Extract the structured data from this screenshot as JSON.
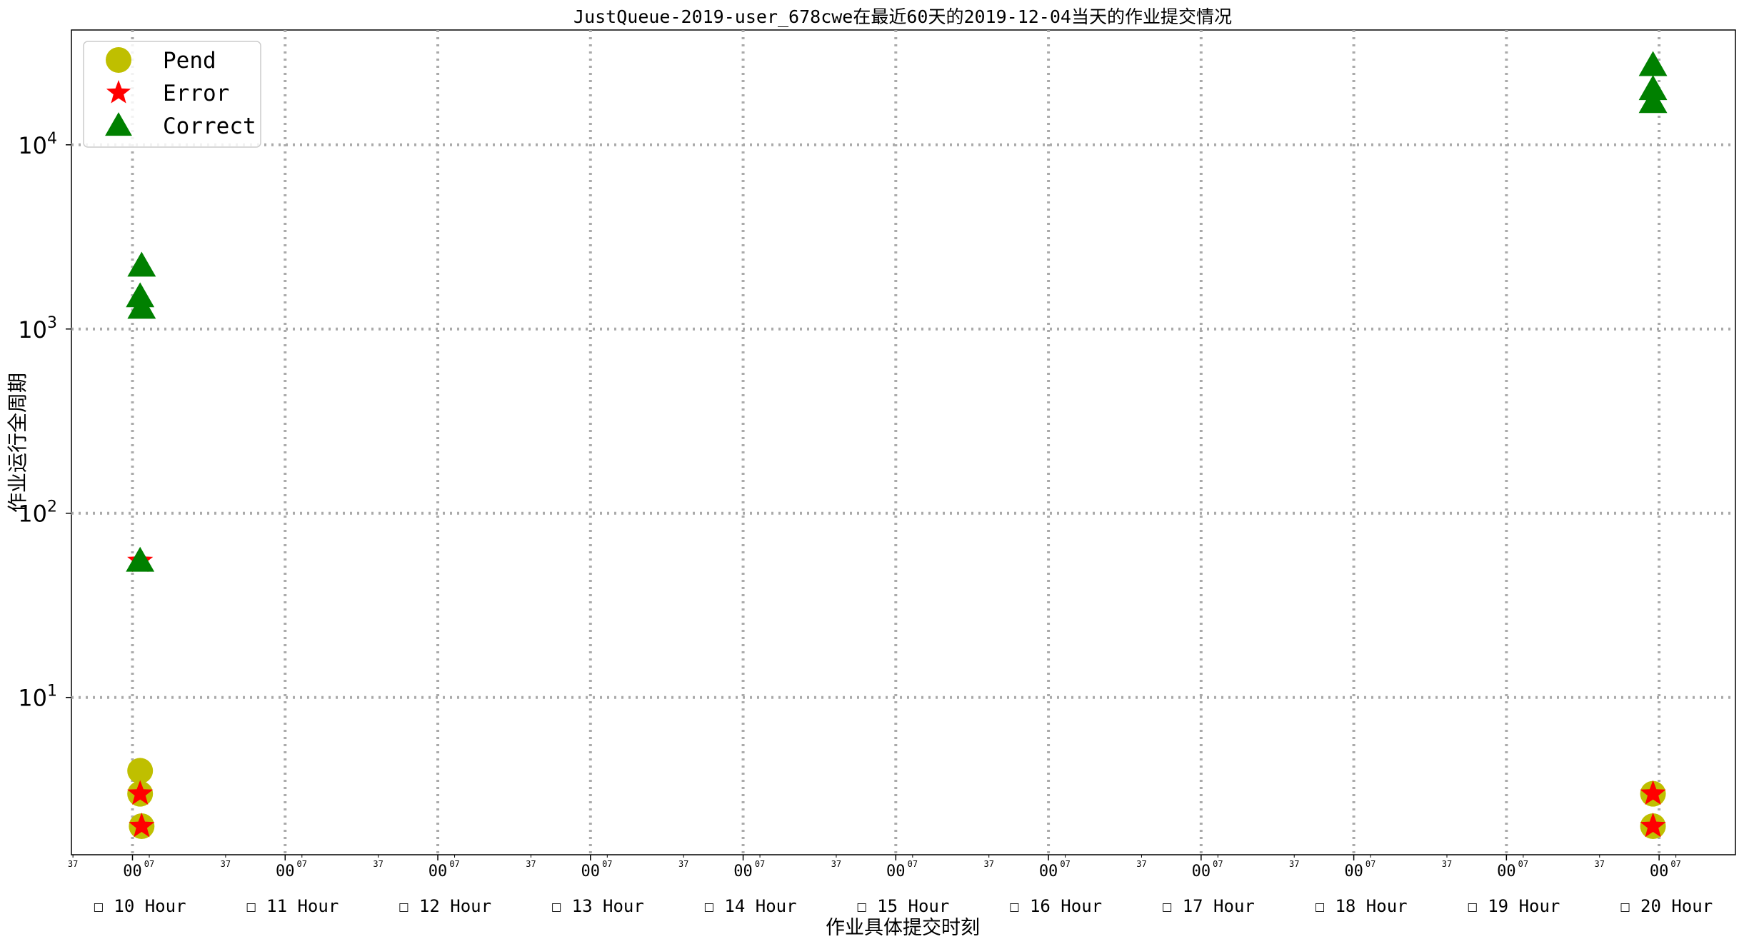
{
  "chart_data": {
    "type": "scatter",
    "title": "JustQueue-2019-user_678cwe在最近60天的2019-12-04当天的作业提交情况",
    "xlabel": "作业具体提交时刻",
    "ylabel": "作业运行全周期",
    "y_scale": "log",
    "ylim": [
      1.4,
      42000
    ],
    "x_hour_range": [
      9.6,
      20.5
    ],
    "y_ticks": [
      {
        "base": "10",
        "exp": "1",
        "value": 10
      },
      {
        "base": "10",
        "exp": "2",
        "value": 100
      },
      {
        "base": "10",
        "exp": "3",
        "value": 1000
      },
      {
        "base": "10",
        "exp": "4",
        "value": 10000
      }
    ],
    "x_hours": [
      {
        "hour": 10,
        "label": "☐ 10 Hour"
      },
      {
        "hour": 11,
        "label": "☐ 11 Hour"
      },
      {
        "hour": 12,
        "label": "☐ 12 Hour"
      },
      {
        "hour": 13,
        "label": "☐ 13 Hour"
      },
      {
        "hour": 14,
        "label": "☐ 14 Hour"
      },
      {
        "hour": 15,
        "label": "☐ 15 Hour"
      },
      {
        "hour": 16,
        "label": "☐ 16 Hour"
      },
      {
        "hour": 17,
        "label": "☐ 17 Hour"
      },
      {
        "hour": 18,
        "label": "☐ 18 Hour"
      },
      {
        "hour": 19,
        "label": "☐ 19 Hour"
      },
      {
        "hour": 20,
        "label": "☐ 20 Hour"
      }
    ],
    "minor_tick_labels": {
      "before": "37",
      "major": "00",
      "after": "07"
    },
    "minor_tick_offsets_hours": {
      "before": -0.39,
      "after": 0.11
    },
    "grid": true,
    "legend_position": "top-left",
    "series": [
      {
        "name": "Pend",
        "marker": "circle",
        "color": "#bfbf00",
        "points": [
          [
            10.05,
            4
          ],
          [
            10.05,
            3
          ],
          [
            10.06,
            2
          ],
          [
            19.96,
            3
          ],
          [
            19.96,
            2
          ]
        ]
      },
      {
        "name": "Error",
        "marker": "star",
        "color": "#ff0000",
        "points": [
          [
            10.05,
            55
          ],
          [
            10.05,
            3
          ],
          [
            10.06,
            2
          ],
          [
            19.96,
            3
          ],
          [
            19.96,
            2
          ]
        ]
      },
      {
        "name": "Correct",
        "marker": "triangle",
        "color": "#008000",
        "points": [
          [
            10.05,
            55
          ],
          [
            10.06,
            1300
          ],
          [
            10.05,
            1500
          ],
          [
            10.06,
            2200
          ],
          [
            19.96,
            17000
          ],
          [
            19.96,
            20000
          ],
          [
            19.96,
            27000
          ]
        ]
      }
    ]
  }
}
